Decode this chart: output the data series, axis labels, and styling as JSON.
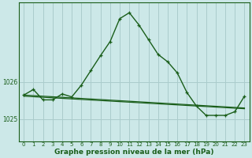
{
  "background_color": "#cce8e8",
  "grid_color": "#aacccc",
  "line_color": "#1a5e1a",
  "marker_color": "#1a5e1a",
  "xlabel": "Graphe pression niveau de la mer (hPa)",
  "xlim": [
    -0.5,
    23.5
  ],
  "ylim": [
    1024.4,
    1028.15
  ],
  "yticks": [
    1025,
    1026
  ],
  "xticks": [
    0,
    1,
    2,
    3,
    4,
    5,
    6,
    7,
    8,
    9,
    10,
    11,
    12,
    13,
    14,
    15,
    16,
    17,
    18,
    19,
    20,
    21,
    22,
    23
  ],
  "series1_x": [
    0,
    1,
    2,
    3,
    4,
    5,
    6,
    7,
    8,
    9,
    10,
    11,
    12,
    13,
    14,
    15,
    16,
    17,
    18,
    19,
    20,
    21,
    22,
    23
  ],
  "series1_y": [
    1025.65,
    1025.8,
    1025.52,
    1025.52,
    1025.68,
    1025.6,
    1025.92,
    1026.32,
    1026.72,
    1027.1,
    1027.72,
    1027.88,
    1027.55,
    1027.15,
    1026.75,
    1026.55,
    1026.25,
    1025.72,
    1025.35,
    1025.1,
    1025.1,
    1025.1,
    1025.2,
    1025.62
  ],
  "series2_x": [
    0,
    23
  ],
  "series2_y": [
    1025.65,
    1025.3
  ],
  "series3_x": [
    0,
    23
  ],
  "series3_y": [
    1025.62,
    1025.28
  ],
  "tick_fontsize": 5.0,
  "xlabel_fontsize": 6.5
}
